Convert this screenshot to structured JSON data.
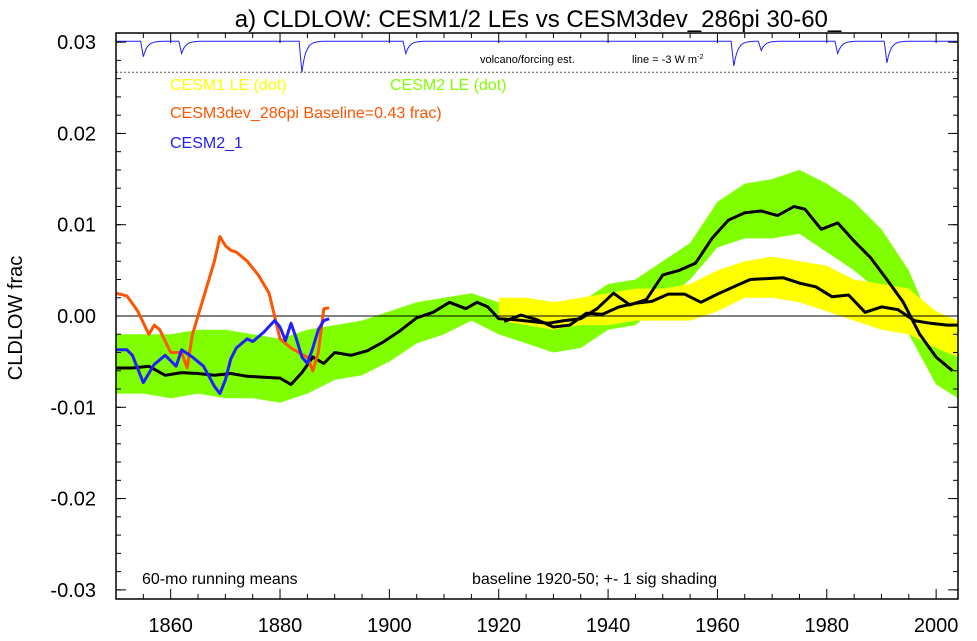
{
  "chart_data": {
    "type": "line",
    "title": "a) CLDLOW: CESM1/2 LEs vs CESM3dev_286pi 30-60_",
    "ylabel": "CLDLOW frac",
    "xlim": [
      1850,
      2004
    ],
    "ylim": [
      -0.031,
      0.031
    ],
    "x_ticks": [
      1860,
      1880,
      1900,
      1920,
      1940,
      1960,
      1980,
      2000
    ],
    "y_ticks": [
      -0.03,
      -0.02,
      -0.01,
      0.0,
      0.01,
      0.02,
      0.03
    ],
    "y_tick_labels": [
      "-0.03",
      "-0.02",
      "-0.01",
      "0.00",
      "0.01",
      "0.02",
      "0.03"
    ],
    "legend": [
      {
        "label": "CESM1 LE (dot)",
        "color": "#ffff00"
      },
      {
        "label": "CESM2 LE (dot)",
        "color": "#80ff00"
      },
      {
        "label": "CESM3dev_286pi Baseline=0.43 frac)",
        "color": "#ff5500"
      },
      {
        "label": "CESM2_1",
        "color": "#2020ff"
      }
    ],
    "volcano_label": "volcano/forcing est.",
    "forcing_line_label": "line = -3 W m",
    "forcing_line_sup": "-2",
    "note_left": "60-mo running means",
    "note_right": "baseline 1920-50; +- 1 sig shading",
    "colors": {
      "cesm1_band": "#ffff00",
      "cesm2_band": "#80ff00",
      "cesm3": "#ff5500",
      "cesm2_1": "#2020ff",
      "mean": "#000000",
      "volcano": "#2020ff"
    },
    "cesm2_band": {
      "x": [
        1850,
        1855,
        1860,
        1865,
        1870,
        1875,
        1880,
        1885,
        1890,
        1895,
        1900,
        1905,
        1910,
        1915,
        1920,
        1925,
        1930,
        1935,
        1940,
        1945,
        1950,
        1955,
        1960,
        1965,
        1970,
        1975,
        1980,
        1985,
        1990,
        1995,
        2000,
        2004
      ],
      "upper": [
        -0.002,
        -0.002,
        -0.002,
        -0.0015,
        -0.0015,
        -0.002,
        -0.0025,
        -0.0015,
        -0.001,
        -0.0005,
        0.0005,
        0.0015,
        0.002,
        0.0025,
        0.0015,
        0.002,
        0.0015,
        0.0015,
        0.0035,
        0.004,
        0.006,
        0.008,
        0.0125,
        0.0145,
        0.015,
        0.016,
        0.0145,
        0.0125,
        0.0095,
        0.005,
        -0.002,
        -0.004
      ],
      "lower": [
        -0.0085,
        -0.0085,
        -0.009,
        -0.0085,
        -0.009,
        -0.009,
        -0.0095,
        -0.0085,
        -0.007,
        -0.0065,
        -0.005,
        -0.003,
        -0.002,
        -0.0005,
        -0.002,
        -0.003,
        -0.004,
        -0.0035,
        -0.0015,
        -0.001,
        0.0015,
        0.004,
        0.0075,
        0.0085,
        0.0085,
        0.009,
        0.007,
        0.005,
        0.0025,
        -0.002,
        -0.0075,
        -0.009
      ]
    },
    "cesm1_band": {
      "x": [
        1920,
        1925,
        1930,
        1935,
        1940,
        1945,
        1950,
        1955,
        1960,
        1965,
        1970,
        1975,
        1980,
        1985,
        1990,
        1995,
        2000,
        2004
      ],
      "upper": [
        0.002,
        0.002,
        0.0015,
        0.002,
        0.0025,
        0.003,
        0.003,
        0.0035,
        0.005,
        0.006,
        0.0065,
        0.006,
        0.0055,
        0.004,
        0.0035,
        0.003,
        0.0005,
        -0.0005
      ],
      "lower": [
        -0.0005,
        -0.001,
        -0.0015,
        -0.001,
        -0.001,
        -0.0005,
        -0.0005,
        -0.0005,
        0.0005,
        0.002,
        0.002,
        0.0015,
        0.0005,
        -0.0005,
        -0.0015,
        -0.002,
        -0.0035,
        -0.0045
      ]
    },
    "cesm2_mean": {
      "x": [
        1850,
        1853,
        1856,
        1859,
        1862,
        1865,
        1868,
        1871,
        1874,
        1877,
        1880,
        1882,
        1884,
        1886,
        1888,
        1890,
        1893,
        1896,
        1899,
        1902,
        1905,
        1908,
        1911,
        1914,
        1916,
        1918,
        1920,
        1923,
        1926,
        1929,
        1932,
        1935,
        1938,
        1941,
        1944,
        1947,
        1950,
        1953,
        1956,
        1959,
        1962,
        1965,
        1968,
        1971,
        1974,
        1976,
        1979,
        1982,
        1985,
        1988,
        1991,
        1994,
        1997,
        2000,
        2003
      ],
      "y": [
        -0.0057,
        -0.0057,
        -0.0055,
        -0.0065,
        -0.0062,
        -0.0063,
        -0.0065,
        -0.0063,
        -0.0066,
        -0.0067,
        -0.0068,
        -0.0075,
        -0.0062,
        -0.0045,
        -0.0052,
        -0.004,
        -0.0043,
        -0.0038,
        -0.0028,
        -0.0016,
        -0.0002,
        0.0004,
        0.0015,
        0.0008,
        0.0015,
        0.001,
        -0.0003,
        -0.0004,
        -0.0006,
        -0.0008,
        -0.0005,
        -0.0003,
        0.0008,
        0.0025,
        0.0012,
        0.0018,
        0.0045,
        0.005,
        0.0058,
        0.0085,
        0.0105,
        0.0113,
        0.0115,
        0.011,
        0.012,
        0.0117,
        0.0095,
        0.0102,
        0.0082,
        0.0064,
        0.004,
        0.0015,
        -0.002,
        -0.0045,
        -0.006
      ]
    },
    "cesm1_mean": {
      "x": [
        1921,
        1924,
        1927,
        1930,
        1933,
        1936,
        1939,
        1942,
        1945,
        1948,
        1951,
        1954,
        1957,
        1960,
        1963,
        1966,
        1969,
        1972,
        1975,
        1978,
        1981,
        1984,
        1987,
        1990,
        1993,
        1996,
        1999,
        2002,
        2004
      ],
      "y": [
        -0.0006,
        0.0001,
        -0.0004,
        -0.0012,
        -0.001,
        0.0003,
        0.0002,
        0.001,
        0.0014,
        0.0016,
        0.0024,
        0.0024,
        0.0015,
        0.0024,
        0.0032,
        0.004,
        0.0041,
        0.0042,
        0.0036,
        0.0032,
        0.0021,
        0.0023,
        0.0004,
        0.001,
        0.0007,
        -0.0005,
        -0.0008,
        -0.001,
        -0.001
      ]
    },
    "cesm3_line": {
      "x": [
        1850,
        1852,
        1854,
        1856,
        1857,
        1858,
        1860,
        1862,
        1863,
        1864,
        1866,
        1868,
        1869,
        1870,
        1871,
        1872,
        1874,
        1876,
        1878,
        1880,
        1882,
        1884,
        1885,
        1886,
        1887,
        1888,
        1889
      ],
      "y": [
        0.0025,
        0.0022,
        0.0005,
        -0.002,
        -0.001,
        -0.0015,
        -0.004,
        -0.004,
        -0.0057,
        -0.002,
        0.002,
        0.006,
        0.0087,
        0.0077,
        0.0072,
        0.007,
        0.006,
        0.0045,
        0.0025,
        -0.0025,
        -0.0035,
        -0.0042,
        -0.0045,
        -0.006,
        -0.004,
        0.0008,
        0.0009
      ]
    },
    "cesm2_1_line": {
      "x": [
        1850,
        1852,
        1853,
        1855,
        1857,
        1859,
        1861,
        1862,
        1864,
        1866,
        1868,
        1869,
        1870,
        1871,
        1872,
        1874,
        1875,
        1877,
        1879,
        1880,
        1881,
        1882,
        1883,
        1884,
        1885,
        1886,
        1887,
        1888,
        1889
      ],
      "y": [
        -0.0037,
        -0.0037,
        -0.0043,
        -0.0073,
        -0.0053,
        -0.0043,
        -0.0055,
        -0.0037,
        -0.0045,
        -0.0055,
        -0.0077,
        -0.0085,
        -0.007,
        -0.0047,
        -0.0035,
        -0.0025,
        -0.0028,
        -0.0018,
        -0.0005,
        -0.0012,
        -0.0027,
        -0.0008,
        -0.0025,
        -0.0045,
        -0.0052,
        -0.0035,
        -0.0015,
        -0.0005,
        -0.0003
      ]
    },
    "volcano_events": [
      {
        "x": 1855,
        "depth": 0.5
      },
      {
        "x": 1862,
        "depth": 0.4
      },
      {
        "x": 1884,
        "depth": 1.0
      },
      {
        "x": 1903,
        "depth": 0.4
      },
      {
        "x": 1963,
        "depth": 0.8
      },
      {
        "x": 1968,
        "depth": 0.3
      },
      {
        "x": 1982,
        "depth": 0.4
      },
      {
        "x": 1991,
        "depth": 0.7
      }
    ],
    "forcing_line_y": 0.0267
  }
}
